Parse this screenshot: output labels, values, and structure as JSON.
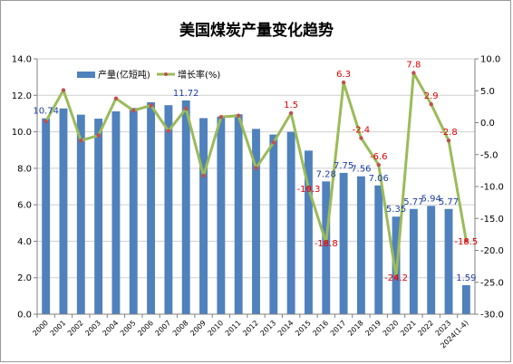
{
  "chart_data": {
    "type": "bar",
    "title": "美国煤炭产量变化趋势",
    "categories": [
      "2000",
      "2001",
      "2002",
      "2003",
      "2004",
      "2005",
      "2006",
      "2007",
      "2008",
      "2009",
      "2010",
      "2011",
      "2012",
      "2013",
      "2014",
      "2015",
      "2016",
      "2017",
      "2018",
      "2019",
      "2020",
      "2021",
      "2022",
      "2023",
      "2024(1-4)"
    ],
    "series": [
      {
        "name": "产量(亿短吨)",
        "type": "bar",
        "axis": "left",
        "color": "#4f81bd",
        "values": [
          10.74,
          11.28,
          10.94,
          10.72,
          11.12,
          11.31,
          11.62,
          11.46,
          11.72,
          10.75,
          10.84,
          10.96,
          10.16,
          9.85,
          10.0,
          8.97,
          7.28,
          7.75,
          7.56,
          7.06,
          5.35,
          5.77,
          5.94,
          5.77,
          1.59
        ]
      },
      {
        "name": "增长率(%)",
        "type": "line",
        "axis": "right",
        "color": "#9bbb59",
        "marker_color": "#c0504d",
        "values": [
          0.2,
          5.1,
          -2.8,
          -2.0,
          3.8,
          1.9,
          2.7,
          -1.3,
          2.2,
          -8.3,
          0.9,
          1.1,
          -7.1,
          -3.1,
          1.5,
          -10.3,
          -18.8,
          6.3,
          -2.4,
          -6.6,
          -24.2,
          7.8,
          2.9,
          -2.8,
          -18.5
        ]
      }
    ],
    "bar_labels": [
      {
        "index": 0,
        "text": "10.74"
      },
      {
        "index": 8,
        "text": "11.72"
      },
      {
        "index": 16,
        "text": "7.28"
      },
      {
        "index": 17,
        "text": "7.75"
      },
      {
        "index": 18,
        "text": "7.56"
      },
      {
        "index": 19,
        "text": "7.06"
      },
      {
        "index": 20,
        "text": "5.35"
      },
      {
        "index": 21,
        "text": "5.77"
      },
      {
        "index": 22,
        "text": "5.94"
      },
      {
        "index": 23,
        "text": "5.77"
      },
      {
        "index": 24,
        "text": "1.59"
      }
    ],
    "line_labels": [
      {
        "index": 14,
        "text": "1.5"
      },
      {
        "index": 15,
        "text": "-10.3"
      },
      {
        "index": 16,
        "text": "-18.8"
      },
      {
        "index": 17,
        "text": "6.3"
      },
      {
        "index": 18,
        "text": "-2.4"
      },
      {
        "index": 19,
        "text": "-6.6"
      },
      {
        "index": 20,
        "text": "-24.2"
      },
      {
        "index": 21,
        "text": "7.8"
      },
      {
        "index": 22,
        "text": "2.9"
      },
      {
        "index": 23,
        "text": "-2.8"
      },
      {
        "index": 24,
        "text": "-18.5"
      }
    ],
    "y_left": {
      "min": 0,
      "max": 14,
      "step": 2,
      "ticks": [
        "0.0",
        "2.0",
        "4.0",
        "6.0",
        "8.0",
        "10.0",
        "12.0",
        "14.0"
      ]
    },
    "y_right": {
      "min": -30,
      "max": 10,
      "step": 5,
      "ticks": [
        "-30.0",
        "-25.0",
        "-20.0",
        "-15.0",
        "-10.0",
        "-5.0",
        "0.0",
        "5.0",
        "10.0"
      ]
    },
    "grid": "horizontal",
    "legend": "top-left"
  }
}
